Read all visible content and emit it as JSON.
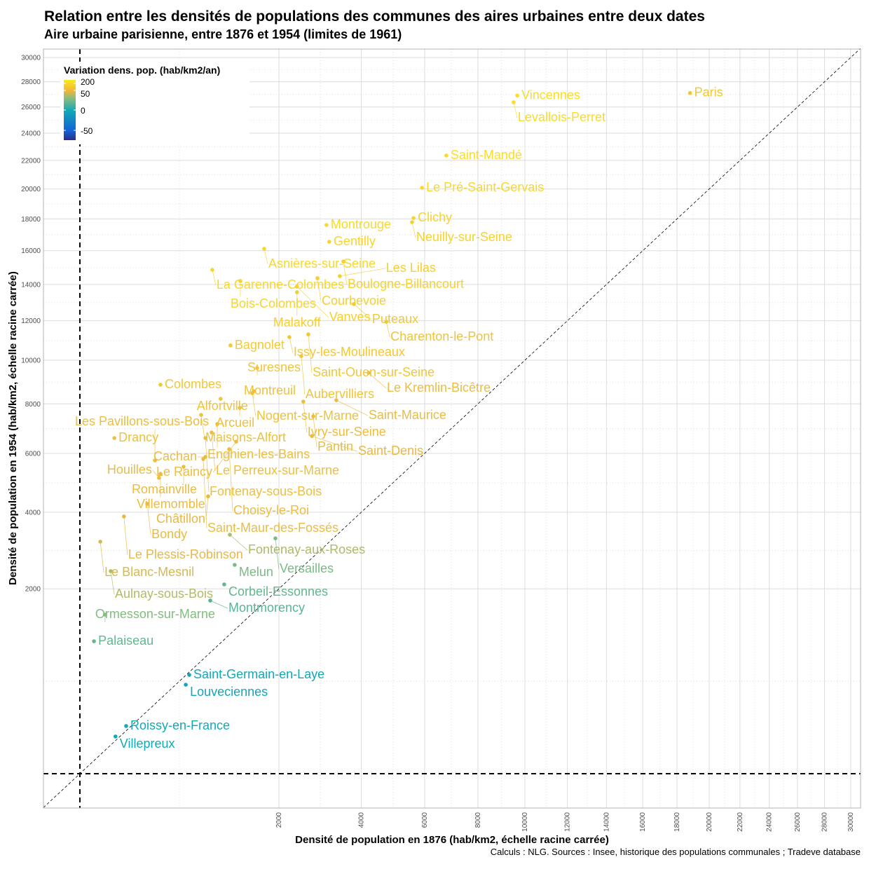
{
  "chart_data": {
    "type": "scatter",
    "title": "Relation entre les densités de populations des communes des aires urbaines entre deux dates",
    "subtitle": "Aire urbaine parisienne, entre 1876 et 1954 (limites de 1961)",
    "xlabel": "Densité de population en 1876 (hab/km2, échelle racine carrée)",
    "ylabel": "Densité de population en 1954 (hab/km2, échelle racine carrée)",
    "caption": "Calculs : NLG. Sources : Insee, historique des populations communales ; Tradeve database",
    "x_scale": "sqrt",
    "y_scale": "sqrt",
    "xlim": [
      0,
      30700
    ],
    "ylim": [
      0,
      30700
    ],
    "x_ticks": [
      2000,
      4000,
      6000,
      8000,
      10000,
      12000,
      14000,
      16000,
      18000,
      20000,
      22000,
      24000,
      26000,
      28000,
      30000
    ],
    "y_ticks": [
      2000,
      4000,
      6000,
      8000,
      10000,
      12000,
      14000,
      16000,
      18000,
      20000,
      22000,
      24000,
      26000,
      28000,
      30000
    ],
    "grid": true,
    "reference_lines": [
      "y = x (dotted diagonal)",
      "x = 0 (dashed)",
      "y = 0 (dashed)"
    ],
    "legend": {
      "title": "Variation dens. pop. (hab/km2/an)",
      "position": "top-left",
      "ticks": [
        "200",
        "50",
        "0",
        "-50"
      ],
      "colors": [
        "#2b2d8a",
        "#1560d6",
        "#12a9b6",
        "#8dbd7d",
        "#f2b637",
        "#fbe81c"
      ]
    },
    "points": [
      {
        "name": "Paris",
        "x": 18800,
        "y": 27100
      },
      {
        "name": "Vincennes",
        "x": 9660,
        "y": 26900
      },
      {
        "name": "Levallois-Perret",
        "x": 9500,
        "y": 26370
      },
      {
        "name": "Saint-Mandé",
        "x": 6780,
        "y": 22350
      },
      {
        "name": "Le Pré-Saint-Gervais",
        "x": 5910,
        "y": 20080
      },
      {
        "name": "Clichy",
        "x": 5620,
        "y": 18060
      },
      {
        "name": "Neuilly-sur-Seine",
        "x": 5570,
        "y": 17790
      },
      {
        "name": "Montrouge",
        "x": 3070,
        "y": 17610
      },
      {
        "name": "Gentilly",
        "x": 3140,
        "y": 16550
      },
      {
        "name": "Asnières-sur-Seine",
        "x": 1715,
        "y": 16120
      },
      {
        "name": "Boulogne-Billancourt",
        "x": 3505,
        "y": 15350
      },
      {
        "name": "La Garenne-Colombes",
        "x": 885,
        "y": 14850
      },
      {
        "name": "Courbevoie",
        "x": 2850,
        "y": 14360
      },
      {
        "name": "Les Lilas",
        "x": 3410,
        "y": 14480
      },
      {
        "name": "Bois-Colombes",
        "x": 1300,
        "y": 14200
      },
      {
        "name": "Vanves",
        "x": 2380,
        "y": 13880
      },
      {
        "name": "Malakoff",
        "x": 2380,
        "y": 13560
      },
      {
        "name": "Puteaux",
        "x": 3790,
        "y": 12900
      },
      {
        "name": "Charenton-le-Pont",
        "x": 4740,
        "y": 11950
      },
      {
        "name": "Issy-les-Moulineaux",
        "x": 2215,
        "y": 11150
      },
      {
        "name": "Saint-Ouen-sur-Seine",
        "x": 2635,
        "y": 11290
      },
      {
        "name": "Bagnolet",
        "x": 1145,
        "y": 10730
      },
      {
        "name": "Aubervilliers",
        "x": 2475,
        "y": 10200
      },
      {
        "name": "Suresnes",
        "x": 1587,
        "y": 9630
      },
      {
        "name": "Le Kremlin-Bicêtre",
        "x": 4210,
        "y": 9400
      },
      {
        "name": "Colombes",
        "x": 328,
        "y": 8850
      },
      {
        "name": "Montreuil",
        "x": 1525,
        "y": 8560
      },
      {
        "name": "Nogent-sur-Marne",
        "x": 1500,
        "y": 8470
      },
      {
        "name": "Alfortville",
        "x": 1000,
        "y": 8220
      },
      {
        "name": "Ivry-sur-Seine",
        "x": 2520,
        "y": 8100
      },
      {
        "name": "Saint-Maurice",
        "x": 3320,
        "y": 8160
      },
      {
        "name": "Arcueil",
        "x": 1290,
        "y": 7830
      },
      {
        "name": "Maisons-Alfort",
        "x": 742,
        "y": 7530
      },
      {
        "name": "Pantin",
        "x": 2750,
        "y": 7470
      },
      {
        "name": "Enghien-les-Bains",
        "x": 953,
        "y": 7150
      },
      {
        "name": "Drancy",
        "x": 60,
        "y": 6590
      },
      {
        "name": "Le Perreux-sur-Marne",
        "x": 876,
        "y": 6810
      },
      {
        "name": "Fontenay-sous-Bois",
        "x": 795,
        "y": 6590
      },
      {
        "name": "Saint-Denis",
        "x": 2717,
        "y": 6670
      },
      {
        "name": "Le Raincy",
        "x": 1233,
        "y": 6450
      },
      {
        "name": "Choisy-le-Roi",
        "x": 1125,
        "y": 6160
      },
      {
        "name": "Cachan",
        "x": 795,
        "y": 5870
      },
      {
        "name": "Saint-Maur-des-Fossés",
        "x": 768,
        "y": 5790
      },
      {
        "name": "Les Pavillons-sous-Bois",
        "x": 284,
        "y": 5740
      },
      {
        "name": "Romainville",
        "x": 543,
        "y": 5510
      },
      {
        "name": "Villemomble",
        "x": 328,
        "y": 5260
      },
      {
        "name": "Houilles",
        "x": 316,
        "y": 5120
      },
      {
        "name": "Châtillon",
        "x": 830,
        "y": 4500
      },
      {
        "name": "Bondy",
        "x": 229,
        "y": 4260
      },
      {
        "name": "Le Plessis-Robinson",
        "x": 98,
        "y": 3870
      },
      {
        "name": "Le Blanc-Mesnil",
        "x": 21,
        "y": 3150
      },
      {
        "name": "Fontenay-aux-Roses",
        "x": 1136,
        "y": 3340
      },
      {
        "name": "Versailles",
        "x": 1930,
        "y": 3240
      },
      {
        "name": "Melun",
        "x": 1210,
        "y": 2550
      },
      {
        "name": "Aulnay-sous-Bois",
        "x": 48,
        "y": 2400
      },
      {
        "name": "Corbeil-Essonnes",
        "x": 1052,
        "y": 2095
      },
      {
        "name": "Montmorency",
        "x": 858,
        "y": 1753
      },
      {
        "name": "Ormesson-sur-Marne",
        "x": 32,
        "y": 1480
      },
      {
        "name": "Palaiseau",
        "x": 10,
        "y": 1026
      },
      {
        "name": "Saint-Germain-en-Laye",
        "x": 604,
        "y": 571
      },
      {
        "name": "Louveciennes",
        "x": 566,
        "y": 463
      },
      {
        "name": "Roissy-en-France",
        "x": 108,
        "y": 133
      },
      {
        "name": "Villepreux",
        "x": 64,
        "y": 81
      }
    ]
  }
}
